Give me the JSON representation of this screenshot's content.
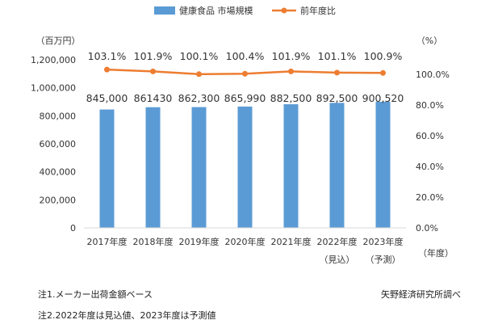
{
  "colors": {
    "bar": "#5b9bd5",
    "line": "#ed7d31",
    "text": "#333333"
  },
  "chart_data": {
    "type": "bar",
    "categories": [
      "2017年度",
      "2018年度",
      "2019年度",
      "2020年度",
      "2021年度",
      "2022年度",
      "2023年度"
    ],
    "category_sublabels": [
      "",
      "",
      "",
      "",
      "",
      "（見込）",
      "（予測）"
    ],
    "series": [
      {
        "name": "健康食品 市場規模",
        "type": "bar",
        "axis": "left",
        "values": [
          845000,
          861430,
          862300,
          865990,
          882500,
          892500,
          900520
        ],
        "labels": [
          "845,000",
          "861430",
          "862,300",
          "865,990",
          "882,500",
          "892,500",
          "900,520"
        ]
      },
      {
        "name": "前年度比",
        "type": "line",
        "axis": "right",
        "values": [
          103.1,
          101.9,
          100.1,
          100.4,
          101.9,
          101.1,
          100.9
        ],
        "labels": [
          "103.1%",
          "101.9%",
          "100.1%",
          "100.4%",
          "101.9%",
          "101.1%",
          "100.9%"
        ]
      }
    ],
    "y_left": {
      "unit": "（百万円）",
      "ylim": [
        0,
        1200000
      ],
      "ticks": [
        "0",
        "200,000",
        "400,000",
        "600,000",
        "800,000",
        "1,000,000",
        "1,200,000"
      ]
    },
    "y_right": {
      "unit": "（%）",
      "ylim": [
        0,
        100
      ],
      "ticks": [
        "0.0%",
        "20.0%",
        "40.0%",
        "60.0%",
        "80.0%",
        "100.0%"
      ]
    },
    "x_unit": "（年度）",
    "legend_position": "top-center",
    "grid": false
  },
  "notes": {
    "note1": "注1.メーカー出荷金額ベース",
    "note2": "注2.2022年度は見込値、2023年度は予測値",
    "source": "矢野経済研究所調べ"
  }
}
